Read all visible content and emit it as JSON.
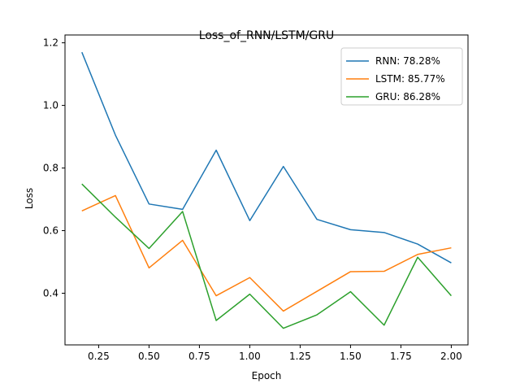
{
  "chart_data": {
    "type": "line",
    "title": "Loss_of_RNN/LSTM/GRU",
    "xlabel": "Epoch",
    "ylabel": "Loss",
    "xlim": [
      0.083,
      2.083
    ],
    "ylim": [
      0.235,
      1.225
    ],
    "xticks": [
      0.25,
      0.5,
      0.75,
      1.0,
      1.25,
      1.5,
      1.75,
      2.0
    ],
    "xtick_labels": [
      "0.25",
      "0.50",
      "0.75",
      "1.00",
      "1.25",
      "1.50",
      "1.75",
      "2.00"
    ],
    "yticks": [
      0.4,
      0.6,
      0.8,
      1.0,
      1.2
    ],
    "ytick_labels": [
      "0.4",
      "0.6",
      "0.8",
      "1.0",
      "1.2"
    ],
    "grid": false,
    "legend_position": "top-right",
    "x": [
      0.1667,
      0.3333,
      0.5,
      0.6667,
      0.8333,
      1.0,
      1.1667,
      1.3333,
      1.5,
      1.6667,
      1.8333,
      2.0
    ],
    "series": [
      {
        "name": "RNN: 78.28%",
        "color": "#1f77b4",
        "values": [
          1.17,
          0.905,
          0.685,
          0.668,
          0.857,
          0.632,
          0.805,
          0.636,
          0.603,
          0.594,
          0.557,
          0.497
        ]
      },
      {
        "name": "LSTM: 85.77%",
        "color": "#ff7f0e",
        "values": [
          0.663,
          0.712,
          0.481,
          0.569,
          0.392,
          0.45,
          0.343,
          0.406,
          0.469,
          0.47,
          0.524,
          0.545
        ]
      },
      {
        "name": "GRU: 86.28%",
        "color": "#2ca02c",
        "values": [
          0.749,
          0.643,
          0.543,
          0.661,
          0.313,
          0.397,
          0.288,
          0.331,
          0.405,
          0.298,
          0.515,
          0.392
        ]
      }
    ]
  }
}
